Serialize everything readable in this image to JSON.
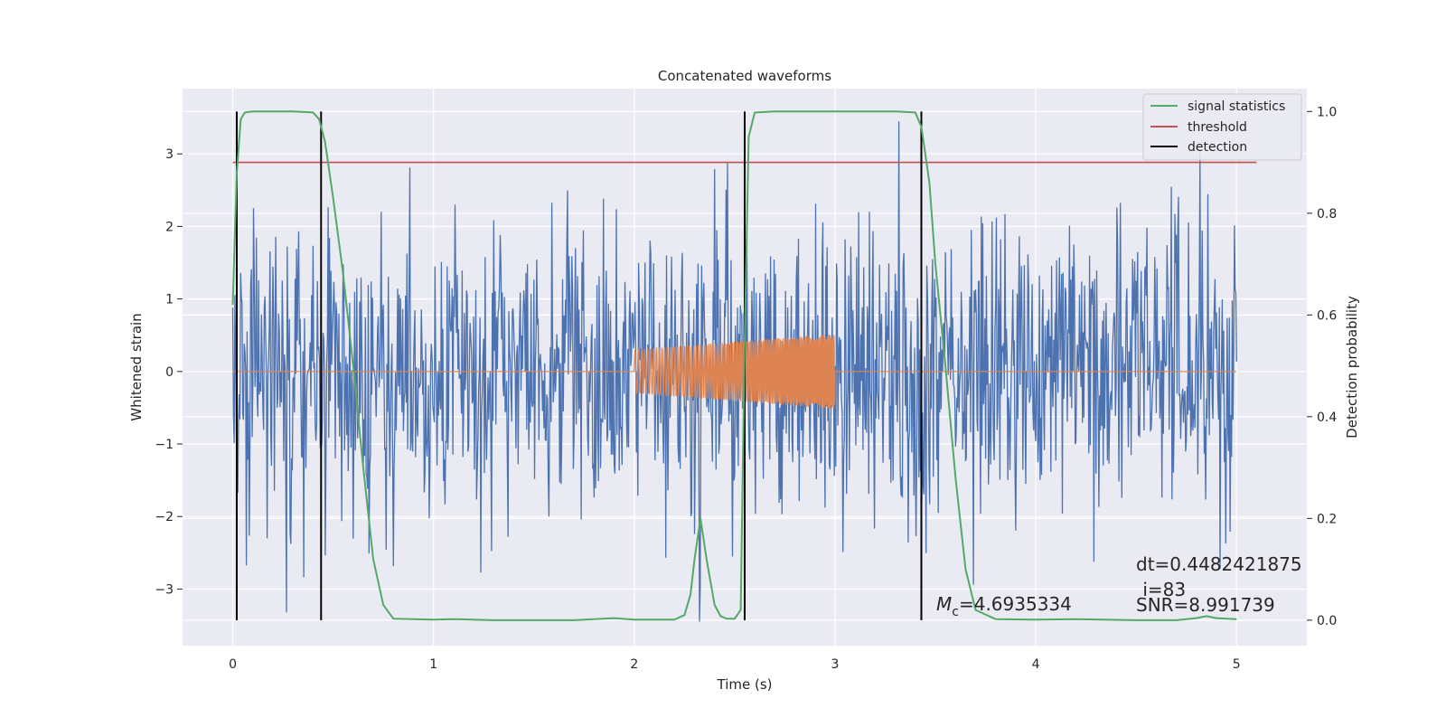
{
  "chart_data": {
    "type": "line",
    "title": "Concatenated waveforms",
    "xlabel": "Time (s)",
    "ylabel": "Whitened strain",
    "y2label": "Detection probability",
    "xlim": [
      -0.25,
      5.35
    ],
    "ylim": [
      -3.78,
      3.9
    ],
    "y2lim": [
      -0.05,
      1.045
    ],
    "xticks": [
      0,
      1,
      2,
      3,
      4,
      5
    ],
    "xticklabels": [
      "0",
      "1",
      "2",
      "3",
      "4",
      "5"
    ],
    "yticks": [
      -3,
      -2,
      -1,
      0,
      1,
      2,
      3
    ],
    "yticklabels": [
      "−3",
      "−2",
      "−1",
      "0",
      "1",
      "2",
      "3"
    ],
    "y2ticks": [
      0.0,
      0.2,
      0.4,
      0.6,
      0.8,
      1.0
    ],
    "y2ticklabels": [
      "0.0",
      "0.2",
      "0.4",
      "0.6",
      "0.8",
      "1.0"
    ],
    "grid": true,
    "legend_position": "top-right",
    "colors": {
      "background": "#eaeaf2",
      "grid": "#ffffff",
      "strain": "#4c72b0",
      "template": "#dd8452",
      "signal_statistics": "#55a868",
      "threshold": "#c44e52",
      "detection": "#000000"
    },
    "series": [
      {
        "name": "signal statistics",
        "axis": "right",
        "color": "#55a868",
        "x": [
          0.0,
          0.02,
          0.04,
          0.06,
          0.1,
          0.2,
          0.3,
          0.4,
          0.43,
          0.46,
          0.5,
          0.55,
          0.6,
          0.65,
          0.7,
          0.75,
          0.8,
          1.0,
          1.1,
          1.3,
          1.5,
          1.7,
          1.9,
          2.0,
          2.2,
          2.25,
          2.28,
          2.3,
          2.33,
          2.36,
          2.4,
          2.43,
          2.46,
          2.5,
          2.53,
          2.55,
          2.57,
          2.6,
          2.7,
          3.0,
          3.3,
          3.4,
          3.43,
          3.47,
          3.5,
          3.55,
          3.6,
          3.65,
          3.7,
          3.8,
          4.0,
          4.2,
          4.5,
          4.7,
          4.8,
          4.85,
          4.9,
          5.0
        ],
        "y": [
          0.62,
          0.88,
          0.985,
          0.998,
          1.0,
          1.0,
          1.0,
          0.998,
          0.985,
          0.94,
          0.83,
          0.68,
          0.5,
          0.3,
          0.12,
          0.03,
          0.003,
          0.001,
          0.002,
          0.0,
          0.0,
          0.0,
          0.004,
          0.001,
          0.001,
          0.01,
          0.05,
          0.12,
          0.2,
          0.12,
          0.03,
          0.008,
          0.003,
          0.003,
          0.02,
          0.55,
          0.95,
          0.998,
          1.0,
          1.0,
          1.0,
          0.998,
          0.97,
          0.86,
          0.7,
          0.5,
          0.28,
          0.1,
          0.02,
          0.002,
          0.001,
          0.002,
          0.0,
          0.0,
          0.004,
          0.008,
          0.004,
          0.002
        ]
      },
      {
        "name": "threshold",
        "axis": "right",
        "color": "#c44e52",
        "x": [
          0.0,
          5.1
        ],
        "y": [
          0.9,
          0.9
        ]
      },
      {
        "name": "detection",
        "axis": "right",
        "color": "#000000",
        "x_lines": [
          0.02,
          0.44,
          2.55,
          3.43
        ],
        "y_range": [
          0.0,
          1.0
        ]
      },
      {
        "axis": "left",
        "color": "#4c72b0",
        "x_range": [
          0.0,
          5.0
        ],
        "noise_sigma": 0.95,
        "peak_clip": [
          -3.45,
          3.45
        ]
      },
      {
        "axis": "left",
        "color": "#dd8452",
        "x_range": [
          2.0,
          3.0
        ],
        "amplitude_start": 0.3,
        "amplitude_end": 0.52,
        "baseline": 0.0
      }
    ],
    "annotations": [
      {
        "name": "dt",
        "text": "dt=0.4482421875"
      },
      {
        "name": "index",
        "text": " i=83"
      },
      {
        "name": "snr",
        "text": "SNR=8.991739"
      },
      {
        "name": "chirp-mass",
        "symbol": "M",
        "subscript": "c",
        "text": "=4.6935334"
      }
    ]
  }
}
